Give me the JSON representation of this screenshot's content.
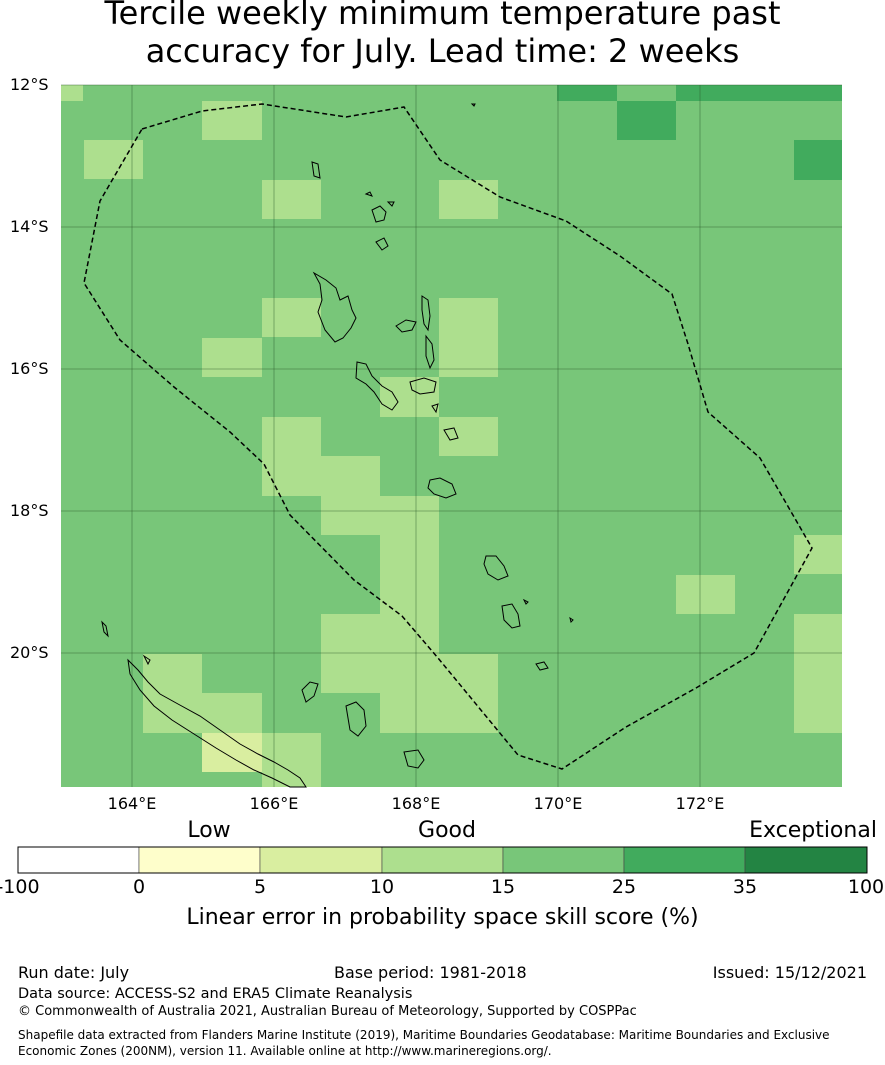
{
  "title": {
    "line1": "Tercile weekly minimum temperature past",
    "line2": "accuracy for July. Lead time: 2 weeks"
  },
  "map": {
    "lat_labels": [
      "12°S",
      "14°S",
      "16°S",
      "18°S",
      "20°S"
    ],
    "lon_labels": [
      "164°E",
      "166°E",
      "168°E",
      "170°E",
      "172°E"
    ],
    "region": "Vanuatu EEZ",
    "gridline_color": "#2a5a2a"
  },
  "colorbar": {
    "categories": [
      "Low",
      "Good",
      "Exceptional"
    ],
    "ticks": [
      "-100",
      "0",
      "5",
      "10",
      "15",
      "25",
      "35",
      "100"
    ],
    "colors": [
      "#ffffff",
      "#fefecb",
      "#d9eea0",
      "#addf8e",
      "#78c679",
      "#41ab5d",
      "#238443"
    ],
    "label": "Linear error in probability space skill score (%)"
  },
  "footer": {
    "run_date": "Run date: July",
    "base_period": "Base period: 1981-2018",
    "issued": "Issued: 15/12/2021",
    "data_source": "Data source: ACCESS-S2 and ERA5 Climate Reanalysis",
    "copyright": "© Commonwealth of Australia 2021, Australian Bureau of Meteorology, Supported by COSPPac",
    "shapefile_line1": "Shapefile data extracted from Flanders Marine Institute (2019), Maritime Boundaries Geodatabase: Maritime Boundaries and Exclusive",
    "shapefile_line2": "Economic Zones (200NM), version 11. Available online at http://www.marineregions.org/."
  }
}
